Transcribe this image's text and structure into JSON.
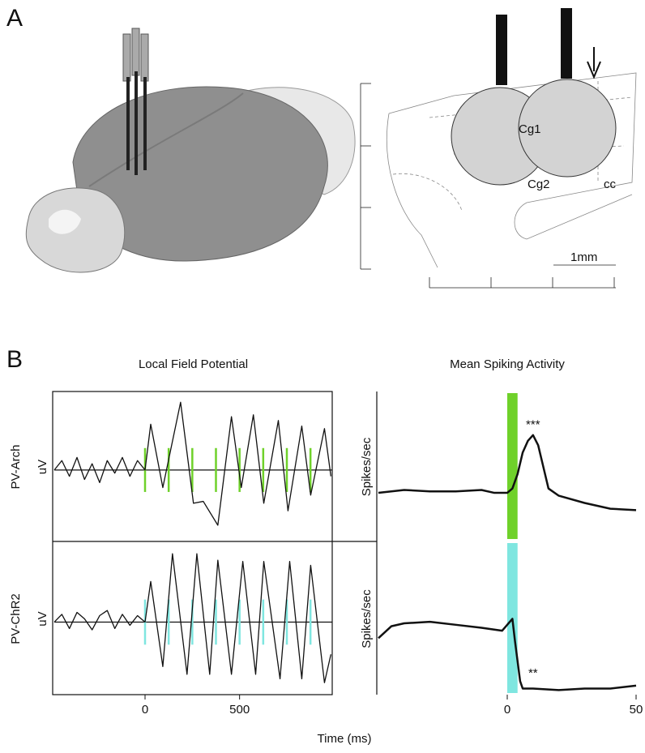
{
  "panel_a": {
    "label": "A",
    "region_labels": [
      "Cg1",
      "Cg2",
      "cc"
    ],
    "scale_bar": "1mm"
  },
  "panel_b": {
    "label": "B",
    "x_axis_label": "Time (ms)"
  },
  "chart_data": [
    {
      "type": "line",
      "title": "Local Field Potential",
      "row_label": "PV-Arch",
      "ylabel": "uV",
      "xlim": [
        -480,
        990
      ],
      "ylim": [
        -1.1,
        1.2
      ],
      "series": [
        {
          "color": "#111111",
          "x": [
            -480,
            -440,
            -400,
            -360,
            -320,
            -280,
            -240,
            -200,
            -160,
            -120,
            -80,
            -40,
            0,
            30,
            94,
            188,
            256,
            308,
            385,
            457,
            509,
            573,
            628,
            705,
            756,
            829,
            876,
            949,
            983
          ],
          "values": [
            0,
            0.15,
            -0.1,
            0.2,
            -0.15,
            0.1,
            -0.2,
            0.15,
            -0.05,
            0.2,
            -0.1,
            0.15,
            0,
            0.73,
            -0.28,
            1.08,
            -0.53,
            -0.5,
            -0.88,
            0.85,
            -0.28,
            0.88,
            -0.53,
            0.79,
            -0.65,
            0.7,
            -0.4,
            0.66,
            -0.1
          ]
        }
      ],
      "stimulus_times": [
        0,
        125,
        250,
        375,
        500,
        625,
        750,
        875
      ],
      "stimulus_color": "#6fd12a"
    },
    {
      "type": "line",
      "title": "Mean Spiking Activity",
      "ylabel": "Spikes/sec",
      "xlim": [
        -50,
        50
      ],
      "ylim": [
        0,
        10
      ],
      "series": [
        {
          "color": "#111111",
          "x": [
            -50,
            -40,
            -30,
            -20,
            -10,
            -5,
            0,
            2,
            4,
            6,
            8,
            10,
            12,
            14,
            16,
            20,
            30,
            40,
            50
          ],
          "values": [
            3.2,
            3.4,
            3.3,
            3.3,
            3.4,
            3.2,
            3.2,
            3.5,
            4.5,
            6.0,
            6.8,
            7.2,
            6.5,
            5.0,
            3.5,
            3.0,
            2.5,
            2.1,
            2.0
          ]
        }
      ],
      "stimulus_window": [
        0,
        4
      ],
      "stimulus_color": "#6fd12a",
      "annotations": [
        {
          "text": "***",
          "x": 10,
          "y": 7.9
        }
      ]
    },
    {
      "type": "line",
      "row_label": "PV-ChR2",
      "ylabel": "uV",
      "xlim": [
        -480,
        990
      ],
      "ylim": [
        -1.1,
        1.2
      ],
      "xticks": [
        0,
        500
      ],
      "series": [
        {
          "color": "#111111",
          "x": [
            -480,
            -440,
            -400,
            -360,
            -320,
            -280,
            -240,
            -200,
            -160,
            -120,
            -80,
            -40,
            0,
            30,
            94,
            145,
            222,
            274,
            342,
            385,
            457,
            517,
            585,
            628,
            714,
            765,
            829,
            876,
            949,
            983
          ],
          "values": [
            0,
            0.12,
            -0.1,
            0.15,
            0.05,
            -0.12,
            0.1,
            0.18,
            -0.1,
            0.12,
            -0.05,
            0.1,
            0,
            0.63,
            -0.69,
            1.06,
            -0.81,
            1.06,
            -0.81,
            0.96,
            -0.81,
            0.94,
            -0.81,
            0.94,
            -0.88,
            0.94,
            -0.88,
            0.88,
            -0.94,
            -0.5
          ]
        }
      ],
      "stimulus_times": [
        0,
        125,
        250,
        375,
        500,
        625,
        750,
        875
      ],
      "stimulus_color": "#7fe6e0"
    },
    {
      "type": "line",
      "ylabel": "Spikes/sec",
      "xlim": [
        -50,
        50
      ],
      "ylim": [
        0,
        10
      ],
      "xticks": [
        0,
        50
      ],
      "series": [
        {
          "color": "#111111",
          "x": [
            -50,
            -45,
            -40,
            -30,
            -20,
            -10,
            -2,
            0,
            2,
            3,
            5,
            6,
            10,
            20,
            30,
            40,
            50
          ],
          "values": [
            3.7,
            4.5,
            4.7,
            4.8,
            4.6,
            4.4,
            4.2,
            4.6,
            5.0,
            3.5,
            0.8,
            0.3,
            0.3,
            0.2,
            0.3,
            0.3,
            0.5
          ]
        }
      ],
      "stimulus_window": [
        0,
        4
      ],
      "stimulus_color": "#7fe6e0",
      "annotations": [
        {
          "text": "**",
          "x": 10,
          "y": 1.3
        }
      ]
    }
  ]
}
